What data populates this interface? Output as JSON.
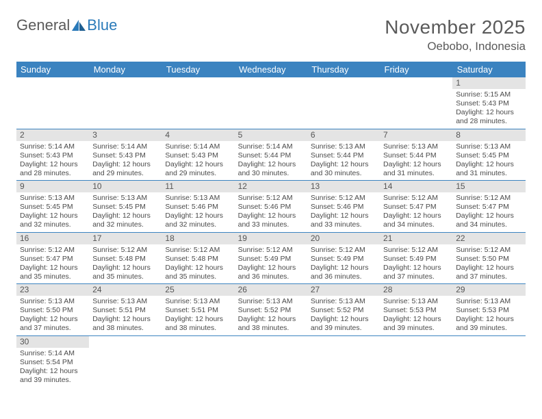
{
  "brand": {
    "word1": "General",
    "word2": "Blue"
  },
  "title": "November 2025",
  "location": "Oebobo, Indonesia",
  "colors": {
    "header_bg": "#3b83c0",
    "header_text": "#ffffff",
    "daynum_bg": "#e4e4e4",
    "rule": "#3b83c0",
    "text": "#5a5a5a"
  },
  "weekdays": [
    "Sunday",
    "Monday",
    "Tuesday",
    "Wednesday",
    "Thursday",
    "Friday",
    "Saturday"
  ],
  "labels": {
    "sunrise": "Sunrise:",
    "sunset": "Sunset:",
    "daylight": "Daylight:"
  },
  "weeks": [
    [
      null,
      null,
      null,
      null,
      null,
      null,
      {
        "n": "1",
        "sr": "5:15 AM",
        "ss": "5:43 PM",
        "dl": "12 hours and 28 minutes."
      }
    ],
    [
      {
        "n": "2",
        "sr": "5:14 AM",
        "ss": "5:43 PM",
        "dl": "12 hours and 28 minutes."
      },
      {
        "n": "3",
        "sr": "5:14 AM",
        "ss": "5:43 PM",
        "dl": "12 hours and 29 minutes."
      },
      {
        "n": "4",
        "sr": "5:14 AM",
        "ss": "5:43 PM",
        "dl": "12 hours and 29 minutes."
      },
      {
        "n": "5",
        "sr": "5:14 AM",
        "ss": "5:44 PM",
        "dl": "12 hours and 30 minutes."
      },
      {
        "n": "6",
        "sr": "5:13 AM",
        "ss": "5:44 PM",
        "dl": "12 hours and 30 minutes."
      },
      {
        "n": "7",
        "sr": "5:13 AM",
        "ss": "5:44 PM",
        "dl": "12 hours and 31 minutes."
      },
      {
        "n": "8",
        "sr": "5:13 AM",
        "ss": "5:45 PM",
        "dl": "12 hours and 31 minutes."
      }
    ],
    [
      {
        "n": "9",
        "sr": "5:13 AM",
        "ss": "5:45 PM",
        "dl": "12 hours and 32 minutes."
      },
      {
        "n": "10",
        "sr": "5:13 AM",
        "ss": "5:45 PM",
        "dl": "12 hours and 32 minutes."
      },
      {
        "n": "11",
        "sr": "5:13 AM",
        "ss": "5:46 PM",
        "dl": "12 hours and 32 minutes."
      },
      {
        "n": "12",
        "sr": "5:12 AM",
        "ss": "5:46 PM",
        "dl": "12 hours and 33 minutes."
      },
      {
        "n": "13",
        "sr": "5:12 AM",
        "ss": "5:46 PM",
        "dl": "12 hours and 33 minutes."
      },
      {
        "n": "14",
        "sr": "5:12 AM",
        "ss": "5:47 PM",
        "dl": "12 hours and 34 minutes."
      },
      {
        "n": "15",
        "sr": "5:12 AM",
        "ss": "5:47 PM",
        "dl": "12 hours and 34 minutes."
      }
    ],
    [
      {
        "n": "16",
        "sr": "5:12 AM",
        "ss": "5:47 PM",
        "dl": "12 hours and 35 minutes."
      },
      {
        "n": "17",
        "sr": "5:12 AM",
        "ss": "5:48 PM",
        "dl": "12 hours and 35 minutes."
      },
      {
        "n": "18",
        "sr": "5:12 AM",
        "ss": "5:48 PM",
        "dl": "12 hours and 35 minutes."
      },
      {
        "n": "19",
        "sr": "5:12 AM",
        "ss": "5:49 PM",
        "dl": "12 hours and 36 minutes."
      },
      {
        "n": "20",
        "sr": "5:12 AM",
        "ss": "5:49 PM",
        "dl": "12 hours and 36 minutes."
      },
      {
        "n": "21",
        "sr": "5:12 AM",
        "ss": "5:49 PM",
        "dl": "12 hours and 37 minutes."
      },
      {
        "n": "22",
        "sr": "5:12 AM",
        "ss": "5:50 PM",
        "dl": "12 hours and 37 minutes."
      }
    ],
    [
      {
        "n": "23",
        "sr": "5:13 AM",
        "ss": "5:50 PM",
        "dl": "12 hours and 37 minutes."
      },
      {
        "n": "24",
        "sr": "5:13 AM",
        "ss": "5:51 PM",
        "dl": "12 hours and 38 minutes."
      },
      {
        "n": "25",
        "sr": "5:13 AM",
        "ss": "5:51 PM",
        "dl": "12 hours and 38 minutes."
      },
      {
        "n": "26",
        "sr": "5:13 AM",
        "ss": "5:52 PM",
        "dl": "12 hours and 38 minutes."
      },
      {
        "n": "27",
        "sr": "5:13 AM",
        "ss": "5:52 PM",
        "dl": "12 hours and 39 minutes."
      },
      {
        "n": "28",
        "sr": "5:13 AM",
        "ss": "5:53 PM",
        "dl": "12 hours and 39 minutes."
      },
      {
        "n": "29",
        "sr": "5:13 AM",
        "ss": "5:53 PM",
        "dl": "12 hours and 39 minutes."
      }
    ],
    [
      {
        "n": "30",
        "sr": "5:14 AM",
        "ss": "5:54 PM",
        "dl": "12 hours and 39 minutes."
      },
      null,
      null,
      null,
      null,
      null,
      null
    ]
  ]
}
